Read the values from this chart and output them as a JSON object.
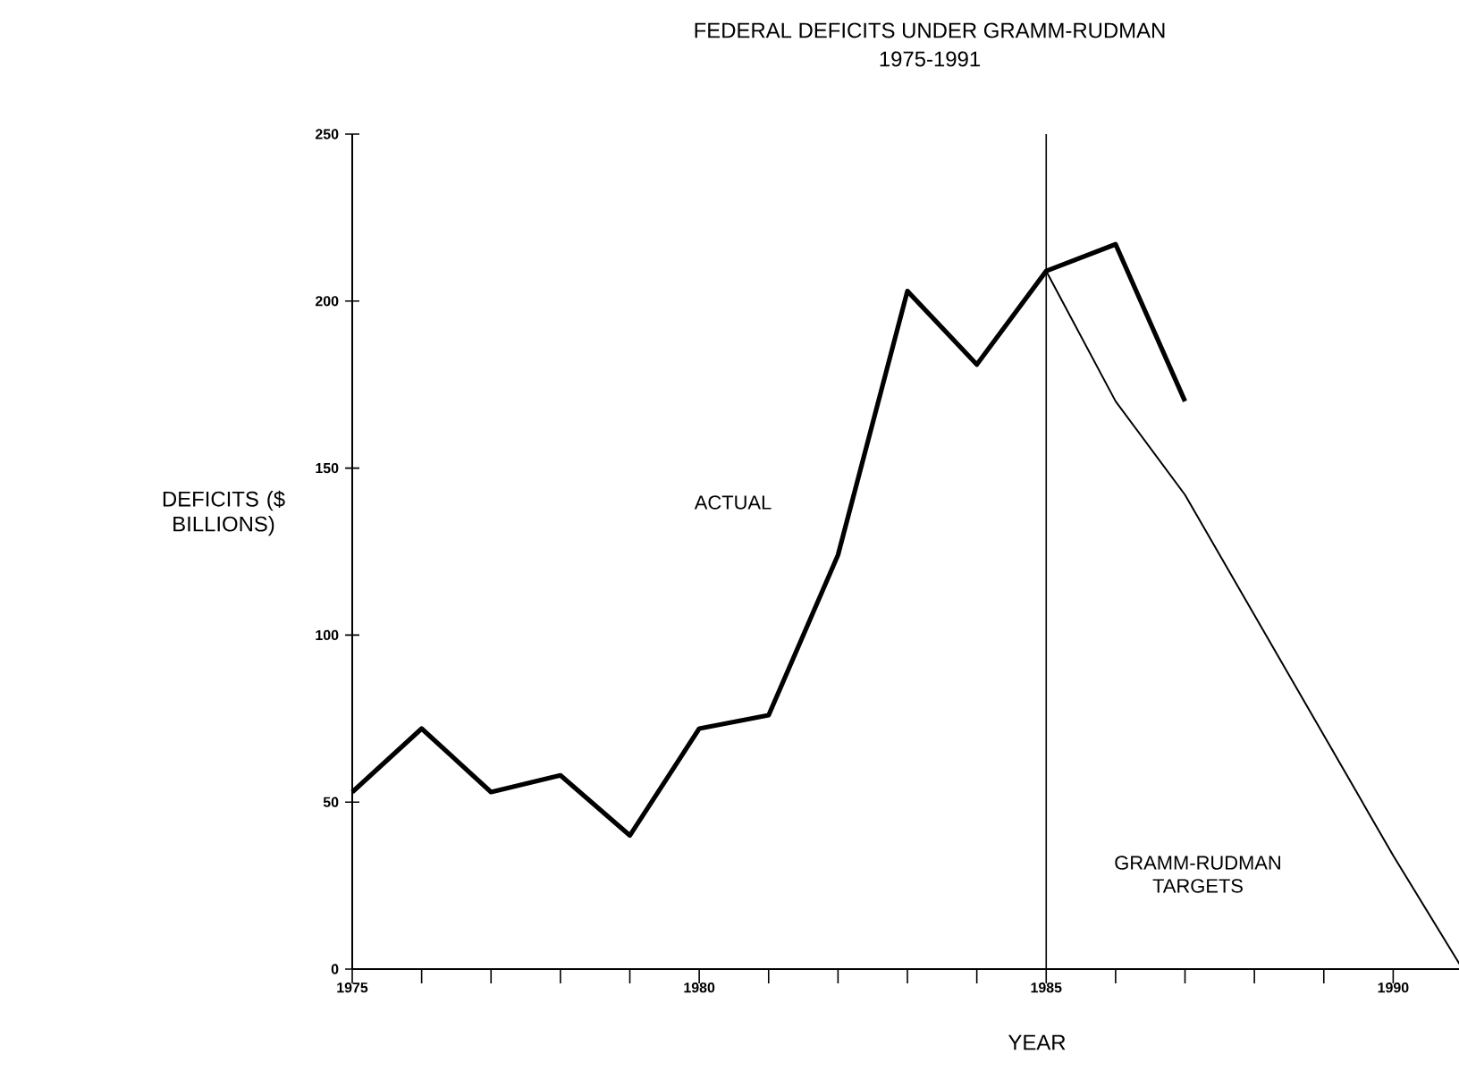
{
  "chart_data": {
    "type": "line",
    "title": "FEDERAL DEFICITS UNDER GRAMM-RUDMAN",
    "subtitle": "1975-1991",
    "xlabel": "YEAR",
    "ylabel": "DEFICITS ($ BILLIONS)",
    "series": [
      {
        "color": "#000000",
        "x": [
          1975,
          1976,
          1977,
          1978,
          1979,
          1980,
          1981,
          1982,
          1983,
          1984,
          1985,
          1986,
          1987
        ],
        "values": [
          53,
          72,
          53,
          58,
          40,
          72,
          76,
          124,
          203,
          181,
          209,
          217,
          170
        ]
      },
      {
        "color": "#000000",
        "x": [
          1985,
          1986,
          1987,
          1988,
          1989,
          1990,
          1991
        ],
        "values": [
          209,
          170,
          142,
          106,
          70,
          34,
          0
        ]
      }
    ],
    "xlim": [
      1975,
      1991
    ],
    "xticks": [
      1975,
      {
        "value": 1976,
        "label": null
      },
      {
        "value": 1977,
        "label": null
      },
      {
        "value": 1978,
        "label": null
      },
      {
        "value": 1979,
        "label": null
      },
      1980,
      {
        "value": 1981,
        "label": null
      },
      {
        "value": 1982,
        "label": null
      },
      {
        "value": 1983,
        "label": null
      },
      {
        "value": 1984,
        "label": null
      },
      1985,
      {
        "value": 1986,
        "label": null
      },
      {
        "value": 1987,
        "label": null
      },
      {
        "value": 1988,
        "label": null
      },
      {
        "value": 1989,
        "label": null
      },
      1990,
      {
        "value": 1991,
        "label": null
      }
    ],
    "ylim": [
      0,
      250
    ],
    "yticks": [
      0,
      50,
      100,
      150,
      200,
      250
    ],
    "annotations": [
      "ACTUAL",
      "GRAMM-RUDMAN TARGETS"
    ],
    "ref_lines": [
      {
        "axis": "x",
        "value": 1985,
        "color": "#000000"
      }
    ],
    "grid": false,
    "marker": "none",
    "line_style": "solid"
  }
}
